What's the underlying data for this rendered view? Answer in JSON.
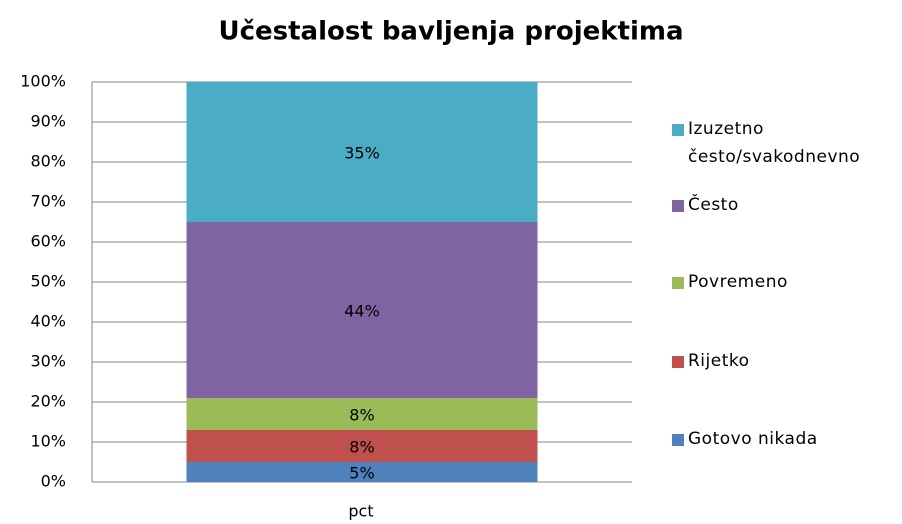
{
  "chart_data": {
    "type": "stacked_bar",
    "title": "Učestalost bavljenja projektima",
    "x_label": "pct",
    "categories": [
      "pct"
    ],
    "series": [
      {
        "name": "Gotovo nikada",
        "color": "#4f81bd",
        "values": [
          5
        ],
        "value_labels": [
          "5%"
        ]
      },
      {
        "name": "Rijetko",
        "color": "#c0504d",
        "values": [
          8
        ],
        "value_labels": [
          "8%"
        ]
      },
      {
        "name": "Povremeno",
        "color": "#9bbb59",
        "values": [
          8
        ],
        "value_labels": [
          "8%"
        ]
      },
      {
        "name": "Često",
        "color": "#8064a2",
        "values": [
          44
        ],
        "value_labels": [
          "44%"
        ]
      },
      {
        "name": "Izuzetno često/svakodnevno",
        "color": "#4bacc6",
        "values": [
          35
        ],
        "value_labels": [
          "35%"
        ]
      }
    ],
    "ylim": [
      0,
      100
    ],
    "yticks": [
      {
        "value": 0,
        "label": "0%"
      },
      {
        "value": 10,
        "label": "10%"
      },
      {
        "value": 20,
        "label": "20%"
      },
      {
        "value": 30,
        "label": "30%"
      },
      {
        "value": 40,
        "label": "40%"
      },
      {
        "value": 50,
        "label": "50%"
      },
      {
        "value": 60,
        "label": "60%"
      },
      {
        "value": 70,
        "label": "70%"
      },
      {
        "value": 80,
        "label": "80%"
      },
      {
        "value": 90,
        "label": "90%"
      },
      {
        "value": 100,
        "label": "100%"
      }
    ],
    "grid": true,
    "legend": "right"
  }
}
